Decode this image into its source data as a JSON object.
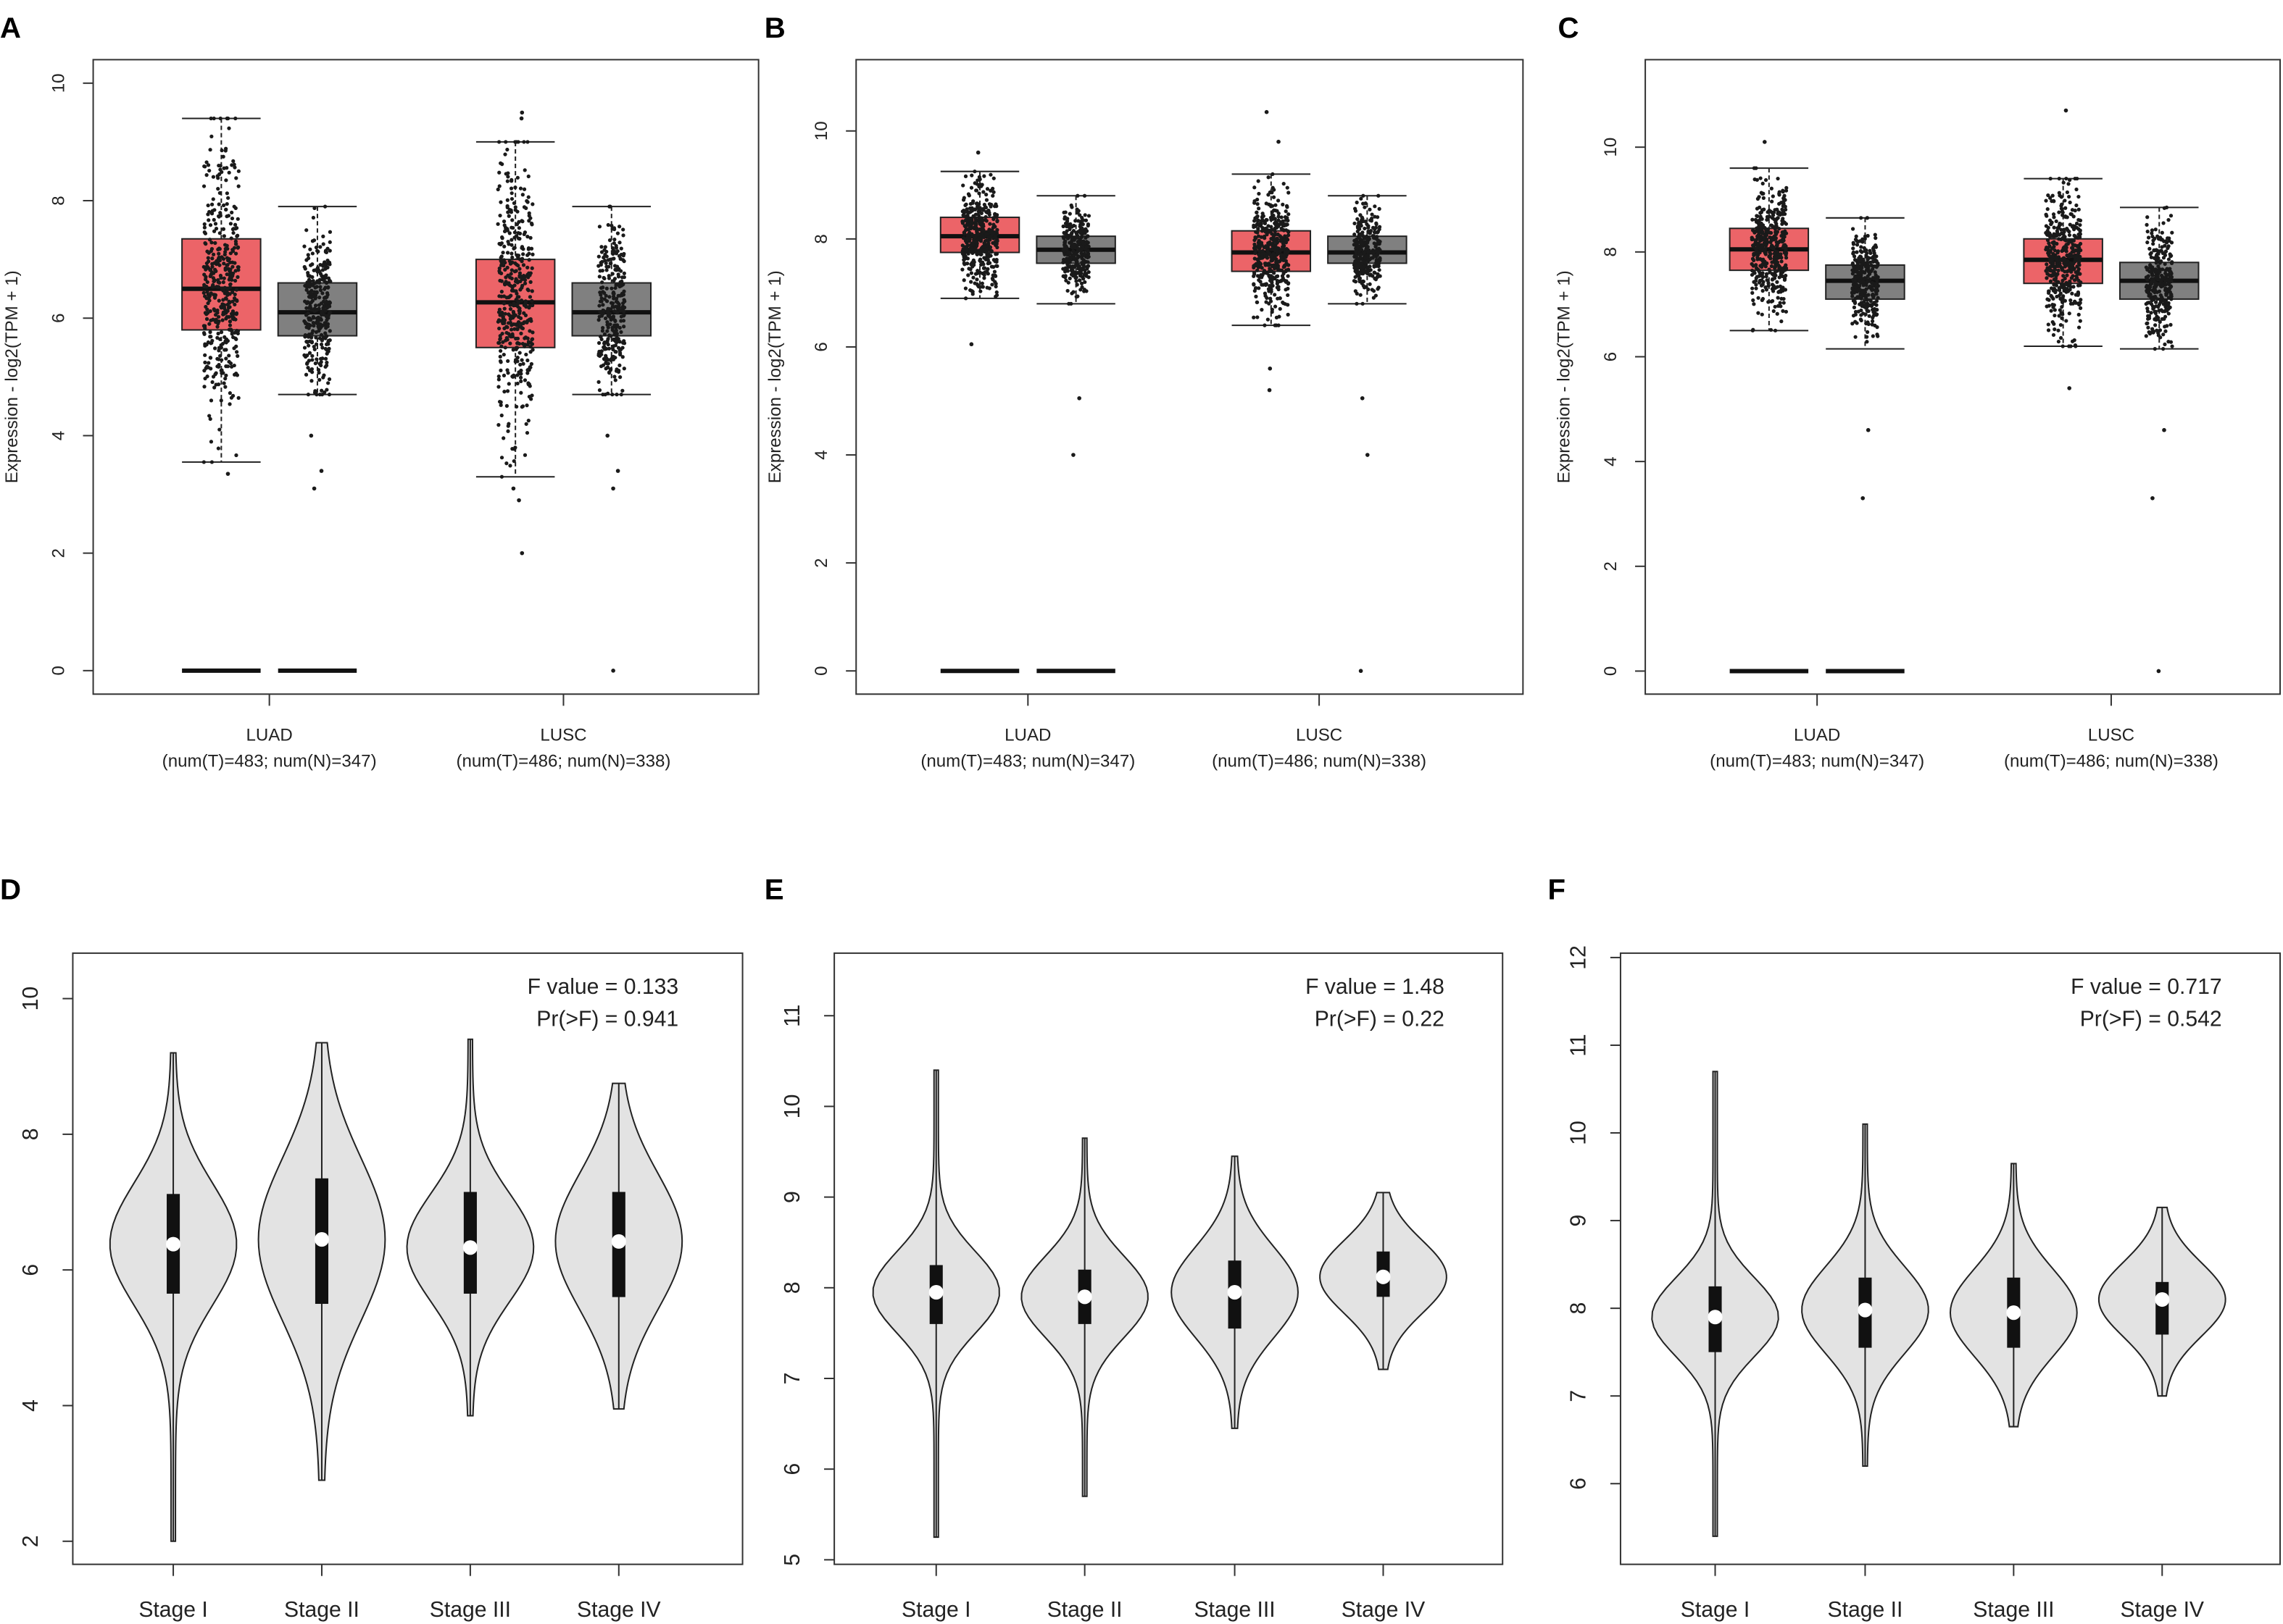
{
  "colors": {
    "tumor": "#ec6468",
    "normal": "#808080",
    "violin": "#e3e3e3",
    "stroke": "#222222"
  },
  "chart_data": [
    {
      "panel": "A",
      "type": "box",
      "ylabel": "Expression - log2(TPM + 1)",
      "ylim": [
        -0.4,
        10.4
      ],
      "yticks": [
        0,
        2,
        4,
        6,
        8,
        10
      ],
      "groups": [
        {
          "label": "LUAD",
          "sublabel": "(num(T)=483; num(N)=347)",
          "tumor": {
            "q1": 5.8,
            "median": 6.5,
            "q3": 7.35,
            "lo": 3.55,
            "hi": 9.4,
            "outliers": [
              3.35
            ],
            "zero_line": true
          },
          "normal": {
            "q1": 5.7,
            "median": 6.1,
            "q3": 6.6,
            "lo": 4.7,
            "hi": 7.9,
            "outliers": [
              4.0,
              3.4,
              3.1
            ],
            "zero_line": true
          }
        },
        {
          "label": "LUSC",
          "sublabel": "(num(T)=486; num(N)=338)",
          "tumor": {
            "q1": 5.5,
            "median": 6.27,
            "q3": 7.0,
            "lo": 3.3,
            "hi": 9.0,
            "outliers": [
              9.5,
              9.4,
              3.1,
              2.9,
              2.0
            ],
            "zero_line": false
          },
          "normal": {
            "q1": 5.7,
            "median": 6.1,
            "q3": 6.6,
            "lo": 4.7,
            "hi": 7.9,
            "outliers": [
              4.0,
              3.4,
              3.1,
              0
            ],
            "zero_line": false
          }
        }
      ]
    },
    {
      "panel": "B",
      "type": "box",
      "ylabel": "Expression - log2(TPM + 1)",
      "ylim": [
        -0.43,
        11.32
      ],
      "yticks": [
        0,
        2,
        4,
        6,
        8,
        10
      ],
      "groups": [
        {
          "label": "LUAD",
          "sublabel": "(num(T)=483; num(N)=347)",
          "tumor": {
            "q1": 7.75,
            "median": 8.05,
            "q3": 8.4,
            "lo": 6.9,
            "hi": 9.25,
            "outliers": [
              9.6,
              6.05
            ],
            "zero_line": true
          },
          "normal": {
            "q1": 7.55,
            "median": 7.8,
            "q3": 8.05,
            "lo": 6.8,
            "hi": 8.8,
            "outliers": [
              5.05,
              4.0
            ],
            "zero_line": true
          }
        },
        {
          "label": "LUSC",
          "sublabel": "(num(T)=486; num(N)=338)",
          "tumor": {
            "q1": 7.4,
            "median": 7.75,
            "q3": 8.15,
            "lo": 6.4,
            "hi": 9.2,
            "outliers": [
              10.35,
              9.8,
              5.6,
              5.2
            ],
            "zero_line": false
          },
          "normal": {
            "q1": 7.55,
            "median": 7.75,
            "q3": 8.05,
            "lo": 6.8,
            "hi": 8.8,
            "outliers": [
              5.05,
              4.0,
              0
            ],
            "zero_line": false
          }
        }
      ]
    },
    {
      "panel": "C",
      "type": "box",
      "ylabel": "Expression - log2(TPM + 1)",
      "ylim": [
        -0.44,
        11.67
      ],
      "yticks": [
        0,
        2,
        4,
        6,
        8,
        10
      ],
      "groups": [
        {
          "label": "LUAD",
          "sublabel": "(num(T)=483; num(N)=347)",
          "tumor": {
            "q1": 7.65,
            "median": 8.05,
            "q3": 8.45,
            "lo": 6.5,
            "hi": 9.6,
            "outliers": [
              10.1
            ],
            "zero_line": true
          },
          "normal": {
            "q1": 7.1,
            "median": 7.45,
            "q3": 7.75,
            "lo": 6.15,
            "hi": 8.65,
            "outliers": [
              4.6,
              3.3
            ],
            "zero_line": true
          }
        },
        {
          "label": "LUSC",
          "sublabel": "(num(T)=486; num(N)=338)",
          "tumor": {
            "q1": 7.4,
            "median": 7.85,
            "q3": 8.25,
            "lo": 6.2,
            "hi": 9.4,
            "outliers": [
              10.7,
              5.4
            ],
            "zero_line": false
          },
          "normal": {
            "q1": 7.1,
            "median": 7.45,
            "q3": 7.8,
            "lo": 6.15,
            "hi": 8.85,
            "outliers": [
              4.6,
              3.3,
              0
            ],
            "zero_line": false
          }
        }
      ]
    },
    {
      "panel": "D",
      "type": "violin",
      "ylim": [
        1.66,
        10.67
      ],
      "yticks": [
        2,
        4,
        6,
        8,
        10
      ],
      "f_text": "F value = 0.133",
      "p_text": "Pr(>F) = 0.941",
      "stages": [
        {
          "label": "Stage I",
          "min": 2.0,
          "max": 9.2,
          "q1": 5.65,
          "median": 6.38,
          "q3": 7.12,
          "sd": 0.9
        },
        {
          "label": "Stage II",
          "min": 2.9,
          "max": 9.35,
          "q1": 5.5,
          "median": 6.45,
          "q3": 7.35,
          "sd": 1.2
        },
        {
          "label": "Stage III",
          "min": 3.85,
          "max": 9.4,
          "q1": 5.65,
          "median": 6.33,
          "q3": 7.15,
          "sd": 0.8
        },
        {
          "label": "Stage IV",
          "min": 3.95,
          "max": 8.75,
          "q1": 5.6,
          "median": 6.42,
          "q3": 7.15,
          "sd": 1.0
        }
      ]
    },
    {
      "panel": "E",
      "type": "violin",
      "ylim": [
        4.95,
        11.69
      ],
      "yticks": [
        5,
        6,
        7,
        8,
        9,
        10,
        11
      ],
      "f_text": "F value = 1.48",
      "p_text": "Pr(>F) = 0.22",
      "stages": [
        {
          "label": "Stage I",
          "min": 5.25,
          "max": 10.4,
          "q1": 7.6,
          "median": 7.95,
          "q3": 8.25,
          "sd": 0.45
        },
        {
          "label": "Stage II",
          "min": 5.7,
          "max": 9.65,
          "q1": 7.6,
          "median": 7.9,
          "q3": 8.2,
          "sd": 0.45
        },
        {
          "label": "Stage III",
          "min": 6.45,
          "max": 9.45,
          "q1": 7.55,
          "median": 7.95,
          "q3": 8.3,
          "sd": 0.5
        },
        {
          "label": "Stage IV",
          "min": 7.1,
          "max": 9.05,
          "q1": 7.9,
          "median": 8.12,
          "q3": 8.4,
          "sd": 0.4
        }
      ]
    },
    {
      "panel": "F",
      "type": "violin",
      "ylim": [
        5.08,
        12.05
      ],
      "yticks": [
        6,
        7,
        8,
        9,
        10,
        11,
        12
      ],
      "f_text": "F value = 0.717",
      "p_text": "Pr(>F) = 0.542",
      "stages": [
        {
          "label": "Stage I",
          "min": 5.4,
          "max": 10.7,
          "q1": 7.5,
          "median": 7.9,
          "q3": 8.25,
          "sd": 0.45
        },
        {
          "label": "Stage II",
          "min": 6.2,
          "max": 10.1,
          "q1": 7.55,
          "median": 7.98,
          "q3": 8.35,
          "sd": 0.5
        },
        {
          "label": "Stage III",
          "min": 6.65,
          "max": 9.65,
          "q1": 7.55,
          "median": 7.95,
          "q3": 8.35,
          "sd": 0.5
        },
        {
          "label": "Stage IV",
          "min": 7.0,
          "max": 9.15,
          "q1": 7.7,
          "median": 8.1,
          "q3": 8.3,
          "sd": 0.42
        }
      ]
    }
  ]
}
